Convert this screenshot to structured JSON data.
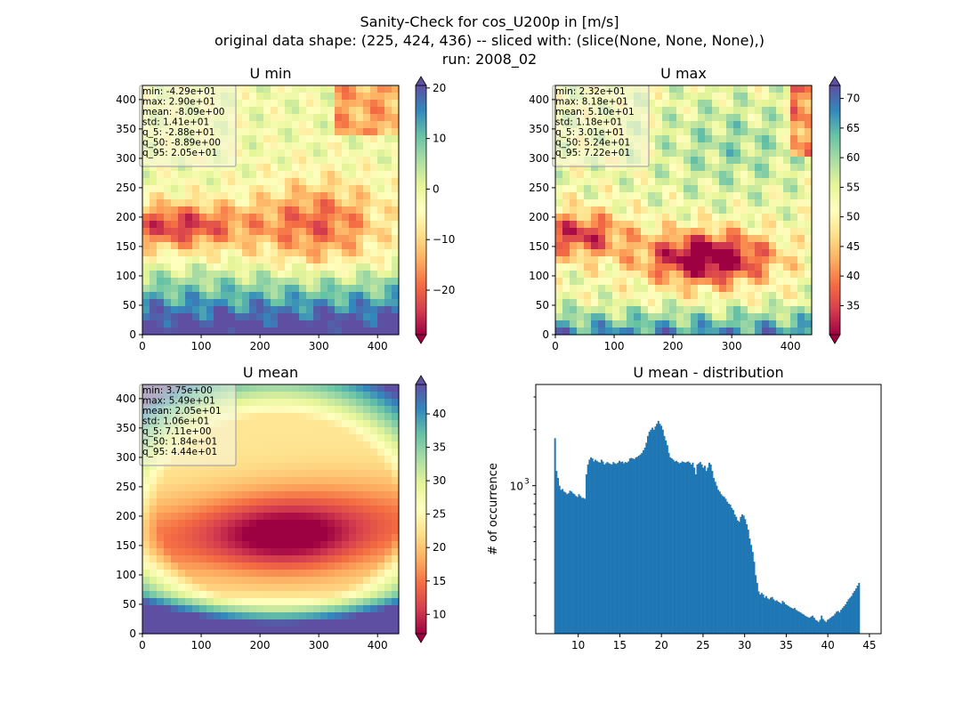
{
  "suptitle": {
    "line1": "Sanity-Check for cos_U200p in [m/s]",
    "line2": "original data shape: (225, 424, 436) -- sliced with: (slice(None, None, None),)",
    "line3": "run: 2008_02"
  },
  "colors": {
    "bar": "#1f77b4",
    "axis": "#000000",
    "stats_bg": "#f5f5dc"
  },
  "colormap": "Spectral",
  "chart_data": [
    {
      "type": "heatmap",
      "title": "U min",
      "xlim": [
        0,
        436
      ],
      "ylim": [
        0,
        424
      ],
      "xticks": [
        0,
        100,
        200,
        300,
        400
      ],
      "yticks": [
        0,
        50,
        100,
        150,
        200,
        250,
        300,
        350,
        400
      ],
      "colorbar": {
        "vmin": -28.8,
        "vmax": 20.5,
        "ticks": [
          -20,
          -10,
          0,
          10,
          20
        ],
        "extend": "both"
      },
      "field": "umin",
      "stats": [
        "min: -4.29e+01",
        "max: 2.90e+01",
        "mean: -8.09e+00",
        "std: 1.41e+01",
        "q_5: -2.88e+01",
        "q_50: -8.89e+00",
        "q_95: 2.05e+01"
      ]
    },
    {
      "type": "heatmap",
      "title": "U max",
      "xlim": [
        0,
        436
      ],
      "ylim": [
        0,
        424
      ],
      "xticks": [
        0,
        100,
        200,
        300,
        400
      ],
      "yticks": [
        0,
        50,
        100,
        150,
        200,
        250,
        300,
        350,
        400
      ],
      "colorbar": {
        "vmin": 30.1,
        "vmax": 72.2,
        "ticks": [
          35,
          40,
          45,
          50,
          55,
          60,
          65,
          70
        ],
        "extend": "both"
      },
      "field": "umax",
      "stats": [
        "min: 2.32e+01",
        "max: 8.18e+01",
        "mean: 5.10e+01",
        "std: 1.18e+01",
        "q_5: 3.01e+01",
        "q_50: 5.24e+01",
        "q_95: 7.22e+01"
      ]
    },
    {
      "type": "heatmap",
      "title": "U mean",
      "xlim": [
        0,
        436
      ],
      "ylim": [
        0,
        424
      ],
      "xticks": [
        0,
        100,
        200,
        300,
        400
      ],
      "yticks": [
        0,
        50,
        100,
        150,
        200,
        250,
        300,
        350,
        400
      ],
      "colorbar": {
        "vmin": 7.11,
        "vmax": 44.4,
        "ticks": [
          10,
          15,
          20,
          25,
          30,
          35,
          40
        ],
        "extend": "both"
      },
      "field": "umean",
      "stats": [
        "min: 3.75e+00",
        "max: 5.49e+01",
        "mean: 2.05e+01",
        "std: 1.06e+01",
        "q_5: 7.11e+00",
        "q_50: 1.84e+01",
        "q_95: 4.44e+01"
      ]
    },
    {
      "type": "bar",
      "title": "U mean - distribution",
      "ylabel": "# of occurrence",
      "yscale": "log",
      "xlim": [
        4.9,
        46.4
      ],
      "ylim": [
        160,
        3500
      ],
      "xticks": [
        10,
        15,
        20,
        25,
        30,
        35,
        40,
        45
      ],
      "yticks_major": [
        {
          "value": 1000,
          "base": "10",
          "exp": "3"
        }
      ],
      "bin_start": 7.11,
      "bin_width": 0.18,
      "counts": [
        1800,
        1200,
        1100,
        1000,
        950,
        960,
        930,
        920,
        900,
        910,
        940,
        930,
        910,
        900,
        880,
        870,
        900,
        880,
        860,
        860,
        850,
        1150,
        1300,
        1380,
        1420,
        1400,
        1350,
        1380,
        1360,
        1340,
        1330,
        1380,
        1350,
        1300,
        1320,
        1340,
        1320,
        1310,
        1300,
        1340,
        1320,
        1310,
        1330,
        1360,
        1340,
        1350,
        1320,
        1340,
        1330,
        1350,
        1400,
        1410,
        1400,
        1390,
        1420,
        1430,
        1450,
        1470,
        1500,
        1550,
        1600,
        1700,
        1850,
        1950,
        2000,
        2050,
        2000,
        2080,
        2150,
        2230,
        2150,
        2100,
        2000,
        1850,
        1750,
        1650,
        1500,
        1420,
        1400,
        1380,
        1350,
        1360,
        1340,
        1320,
        1330,
        1350,
        1340,
        1330,
        1340,
        1350,
        1330,
        1300,
        1330,
        1250,
        1150,
        1300,
        1320,
        1340,
        1300,
        1250,
        1280,
        1200,
        1250,
        1330,
        1300,
        1200,
        1100,
        1050,
        1000,
        950,
        930,
        900,
        880,
        870,
        850,
        820,
        800,
        790,
        760,
        740,
        700,
        680,
        650,
        640,
        680,
        700,
        690,
        660,
        620,
        580,
        520,
        480,
        440,
        390,
        330,
        300,
        270,
        260,
        265,
        260,
        250,
        255,
        248,
        245,
        250,
        252,
        245,
        240,
        242,
        238,
        235,
        232,
        240,
        236,
        230,
        228,
        225,
        222,
        220,
        218,
        220,
        215,
        212,
        210,
        208,
        205,
        203,
        200,
        198,
        196,
        195,
        198,
        200,
        195,
        190,
        188,
        185,
        190,
        200,
        192,
        188,
        185,
        190,
        192,
        195,
        198,
        200,
        205,
        210,
        212,
        208,
        215,
        220,
        225,
        230,
        238,
        245,
        250,
        255,
        265,
        272,
        280,
        290,
        300
      ]
    }
  ]
}
